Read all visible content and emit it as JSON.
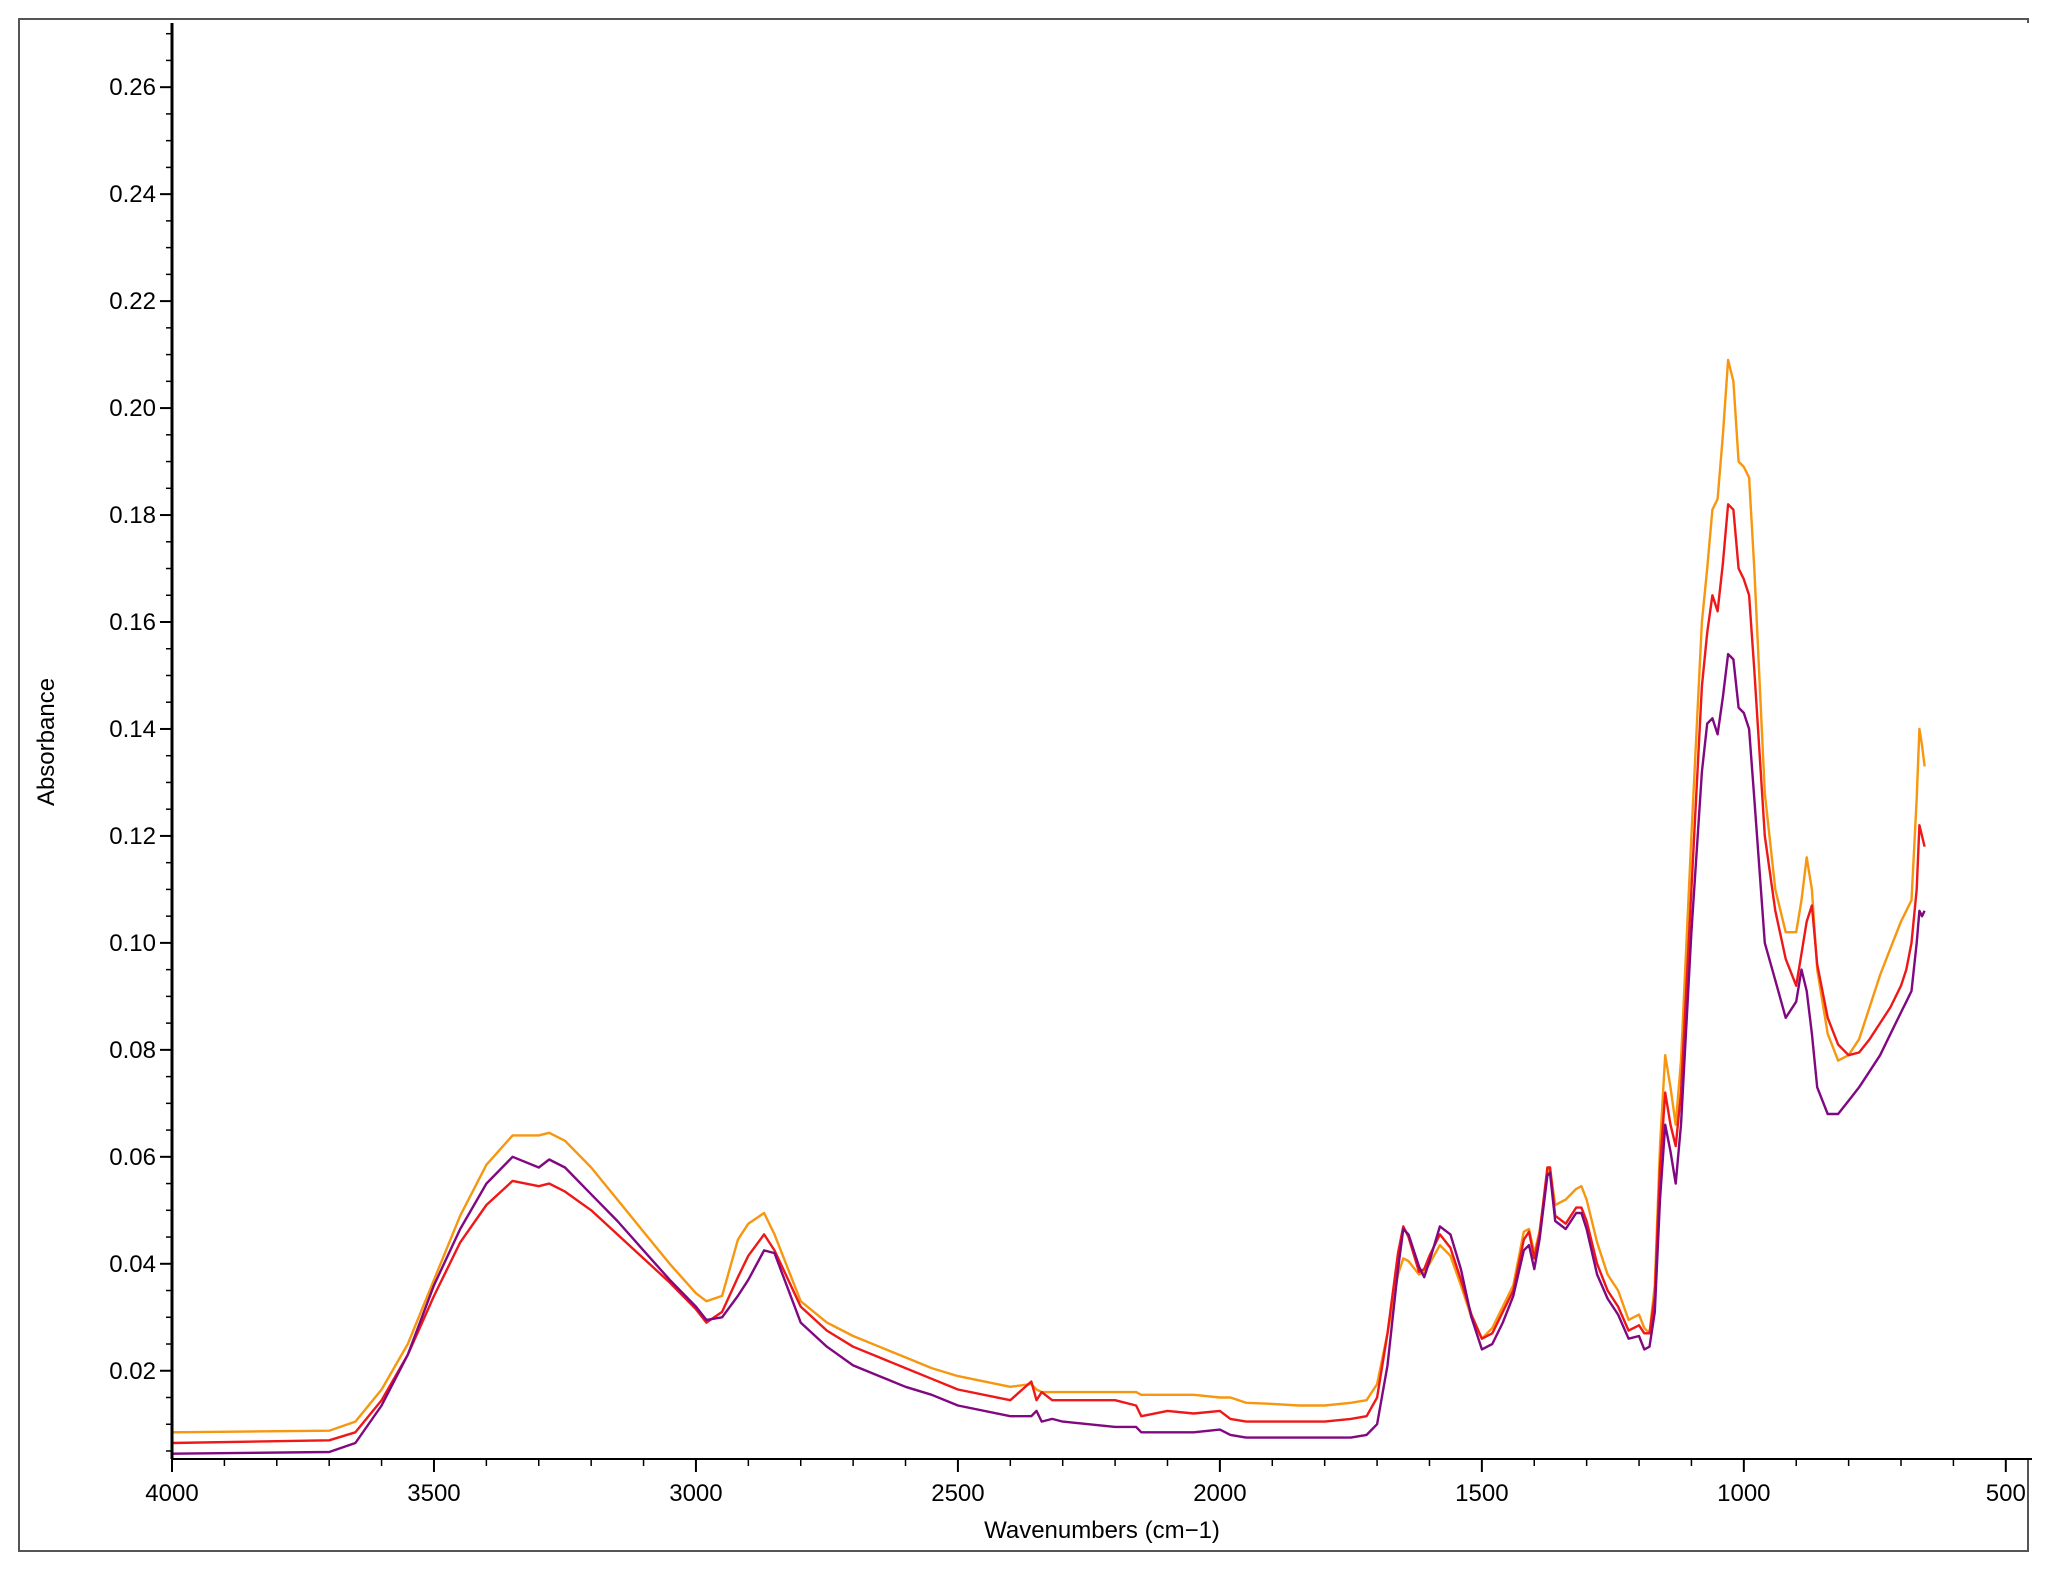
{
  "chart_data": {
    "type": "line",
    "title": "",
    "xlabel": "Wavenumbers (cm−1)",
    "ylabel": "Absorbance",
    "xlim": [
      4000,
      450
    ],
    "ylim": [
      0.0035,
      0.272
    ],
    "x_reversed": true,
    "grid": false,
    "xticks": [
      4000,
      3500,
      3000,
      2500,
      2000,
      1500,
      1000,
      500
    ],
    "yticks": [
      0.02,
      0.04,
      0.06,
      0.08,
      0.1,
      0.12,
      0.14,
      0.16,
      0.18,
      0.2,
      0.22,
      0.24,
      0.26
    ],
    "ytick_labels": [
      "0.02",
      "0.04",
      "0.06",
      "0.08",
      "0.10",
      "0.12",
      "0.14",
      "0.16",
      "0.18",
      "0.20",
      "0.22",
      "0.24",
      "0.26"
    ],
    "x": [
      4000,
      3700,
      3650,
      3600,
      3550,
      3500,
      3450,
      3400,
      3350,
      3300,
      3280,
      3250,
      3200,
      3150,
      3100,
      3050,
      3000,
      2980,
      2950,
      2920,
      2900,
      2870,
      2850,
      2800,
      2750,
      2700,
      2650,
      2600,
      2550,
      2500,
      2400,
      2360,
      2350,
      2340,
      2320,
      2300,
      2200,
      2160,
      2150,
      2100,
      2050,
      2000,
      1980,
      1950,
      1900,
      1850,
      1800,
      1750,
      1720,
      1700,
      1680,
      1660,
      1650,
      1640,
      1620,
      1610,
      1600,
      1580,
      1560,
      1540,
      1520,
      1500,
      1480,
      1460,
      1440,
      1420,
      1410,
      1400,
      1390,
      1375,
      1370,
      1360,
      1340,
      1320,
      1310,
      1300,
      1280,
      1260,
      1240,
      1220,
      1200,
      1190,
      1180,
      1170,
      1160,
      1150,
      1140,
      1130,
      1120,
      1100,
      1080,
      1070,
      1060,
      1050,
      1040,
      1030,
      1020,
      1010,
      1000,
      990,
      980,
      960,
      940,
      920,
      900,
      890,
      880,
      870,
      860,
      840,
      820,
      800,
      780,
      760,
      740,
      720,
      700,
      690,
      680,
      670,
      665,
      660,
      655
    ],
    "series": [
      {
        "name": "",
        "color": "#f7960f",
        "values": [
          0.0085,
          0.0088,
          0.0105,
          0.0165,
          0.025,
          0.037,
          0.049,
          0.0585,
          0.064,
          0.064,
          0.0645,
          0.063,
          0.058,
          0.052,
          0.046,
          0.04,
          0.0345,
          0.033,
          0.034,
          0.0445,
          0.0475,
          0.0495,
          0.0455,
          0.033,
          0.029,
          0.0265,
          0.0245,
          0.0225,
          0.0205,
          0.019,
          0.017,
          0.0175,
          0.0165,
          0.016,
          0.016,
          0.016,
          0.016,
          0.016,
          0.0155,
          0.0155,
          0.0155,
          0.015,
          0.015,
          0.014,
          0.0138,
          0.0135,
          0.0135,
          0.014,
          0.0145,
          0.0175,
          0.027,
          0.038,
          0.041,
          0.0405,
          0.038,
          0.0385,
          0.04,
          0.0435,
          0.0415,
          0.036,
          0.03,
          0.026,
          0.028,
          0.032,
          0.036,
          0.046,
          0.0465,
          0.042,
          0.046,
          0.057,
          0.058,
          0.051,
          0.052,
          0.054,
          0.0545,
          0.052,
          0.044,
          0.038,
          0.035,
          0.0295,
          0.0305,
          0.028,
          0.027,
          0.036,
          0.062,
          0.079,
          0.073,
          0.066,
          0.078,
          0.12,
          0.16,
          0.17,
          0.181,
          0.183,
          0.195,
          0.209,
          0.205,
          0.19,
          0.189,
          0.187,
          0.17,
          0.128,
          0.11,
          0.102,
          0.102,
          0.108,
          0.116,
          0.11,
          0.095,
          0.083,
          0.078,
          0.079,
          0.082,
          0.088,
          0.094,
          0.099,
          0.104,
          0.106,
          0.108,
          0.127,
          0.14,
          0.137,
          0.133
        ]
      },
      {
        "name": "",
        "color": "#ee1818",
        "values": [
          0.0065,
          0.007,
          0.0085,
          0.0145,
          0.023,
          0.034,
          0.044,
          0.051,
          0.0555,
          0.0545,
          0.055,
          0.0535,
          0.05,
          0.0455,
          0.041,
          0.0365,
          0.0315,
          0.029,
          0.031,
          0.0375,
          0.0415,
          0.0455,
          0.0425,
          0.032,
          0.0275,
          0.0245,
          0.0225,
          0.0205,
          0.0185,
          0.0165,
          0.0145,
          0.018,
          0.0145,
          0.016,
          0.0145,
          0.0145,
          0.0145,
          0.0135,
          0.0115,
          0.0125,
          0.012,
          0.0125,
          0.011,
          0.0105,
          0.0105,
          0.0105,
          0.0105,
          0.011,
          0.0115,
          0.015,
          0.027,
          0.042,
          0.047,
          0.045,
          0.0385,
          0.039,
          0.0415,
          0.0455,
          0.043,
          0.037,
          0.0305,
          0.026,
          0.027,
          0.031,
          0.035,
          0.0445,
          0.046,
          0.041,
          0.0455,
          0.058,
          0.058,
          0.049,
          0.0475,
          0.0505,
          0.0505,
          0.048,
          0.04,
          0.035,
          0.032,
          0.0275,
          0.0285,
          0.027,
          0.027,
          0.034,
          0.058,
          0.072,
          0.066,
          0.062,
          0.072,
          0.11,
          0.148,
          0.158,
          0.165,
          0.162,
          0.171,
          0.182,
          0.181,
          0.17,
          0.168,
          0.165,
          0.151,
          0.12,
          0.106,
          0.097,
          0.092,
          0.098,
          0.104,
          0.107,
          0.096,
          0.086,
          0.081,
          0.079,
          0.0795,
          0.082,
          0.085,
          0.088,
          0.092,
          0.095,
          0.1,
          0.11,
          0.122,
          0.12,
          0.118
        ]
      },
      {
        "name": "",
        "color": "#800880",
        "values": [
          0.0045,
          0.0048,
          0.0065,
          0.0135,
          0.023,
          0.036,
          0.0465,
          0.055,
          0.06,
          0.058,
          0.0595,
          0.058,
          0.053,
          0.048,
          0.0425,
          0.037,
          0.032,
          0.0295,
          0.03,
          0.034,
          0.037,
          0.0425,
          0.042,
          0.029,
          0.0245,
          0.021,
          0.019,
          0.017,
          0.0155,
          0.0135,
          0.0115,
          0.0115,
          0.0125,
          0.0105,
          0.011,
          0.0105,
          0.0095,
          0.0095,
          0.0085,
          0.0085,
          0.0085,
          0.009,
          0.008,
          0.0075,
          0.0075,
          0.0075,
          0.0075,
          0.0075,
          0.008,
          0.01,
          0.021,
          0.039,
          0.0465,
          0.0455,
          0.0395,
          0.0375,
          0.0405,
          0.047,
          0.0455,
          0.039,
          0.03,
          0.024,
          0.025,
          0.029,
          0.034,
          0.0425,
          0.0435,
          0.039,
          0.0445,
          0.0565,
          0.057,
          0.048,
          0.0465,
          0.0495,
          0.0495,
          0.0465,
          0.038,
          0.0335,
          0.0305,
          0.026,
          0.0265,
          0.024,
          0.0245,
          0.031,
          0.052,
          0.066,
          0.061,
          0.055,
          0.066,
          0.102,
          0.132,
          0.141,
          0.142,
          0.139,
          0.146,
          0.154,
          0.153,
          0.144,
          0.143,
          0.14,
          0.127,
          0.1,
          0.093,
          0.086,
          0.089,
          0.095,
          0.091,
          0.083,
          0.073,
          0.068,
          0.068,
          0.0705,
          0.073,
          0.076,
          0.079,
          0.083,
          0.087,
          0.089,
          0.091,
          0.1,
          0.106,
          0.105,
          0.106
        ]
      }
    ]
  }
}
